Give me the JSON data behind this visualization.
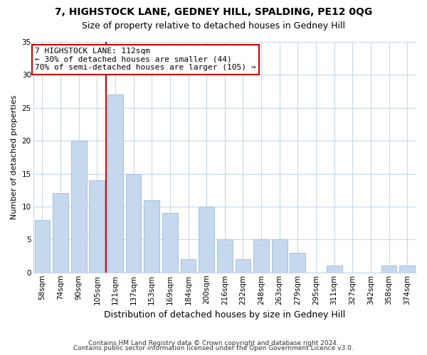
{
  "title": "7, HIGHSTOCK LANE, GEDNEY HILL, SPALDING, PE12 0QG",
  "subtitle": "Size of property relative to detached houses in Gedney Hill",
  "xlabel": "Distribution of detached houses by size in Gedney Hill",
  "ylabel": "Number of detached properties",
  "footer1": "Contains HM Land Registry data © Crown copyright and database right 2024.",
  "footer2": "Contains public sector information licensed under the Open Government Licence v3.0.",
  "bins": [
    "58sqm",
    "74sqm",
    "90sqm",
    "105sqm",
    "121sqm",
    "137sqm",
    "153sqm",
    "169sqm",
    "184sqm",
    "200sqm",
    "216sqm",
    "232sqm",
    "248sqm",
    "263sqm",
    "279sqm",
    "295sqm",
    "311sqm",
    "327sqm",
    "342sqm",
    "358sqm",
    "374sqm"
  ],
  "counts": [
    8,
    12,
    20,
    14,
    27,
    15,
    11,
    9,
    2,
    10,
    5,
    2,
    5,
    5,
    3,
    0,
    1,
    0,
    0,
    1,
    1
  ],
  "bar_color": "#c5d8ed",
  "bar_edge_color": "#aac4df",
  "vline_color": "#cc0000",
  "annotation_text": "7 HIGHSTOCK LANE: 112sqm\n← 30% of detached houses are smaller (44)\n70% of semi-detached houses are larger (105) →",
  "annotation_box_edge": "#cc0000",
  "ylim": [
    0,
    35
  ],
  "yticks": [
    0,
    5,
    10,
    15,
    20,
    25,
    30,
    35
  ],
  "bg_color": "#ffffff",
  "grid_color": "#c8d8e8",
  "title_fontsize": 10,
  "subtitle_fontsize": 9,
  "xlabel_fontsize": 9,
  "ylabel_fontsize": 8,
  "tick_fontsize": 7.5,
  "footer_fontsize": 6.5
}
